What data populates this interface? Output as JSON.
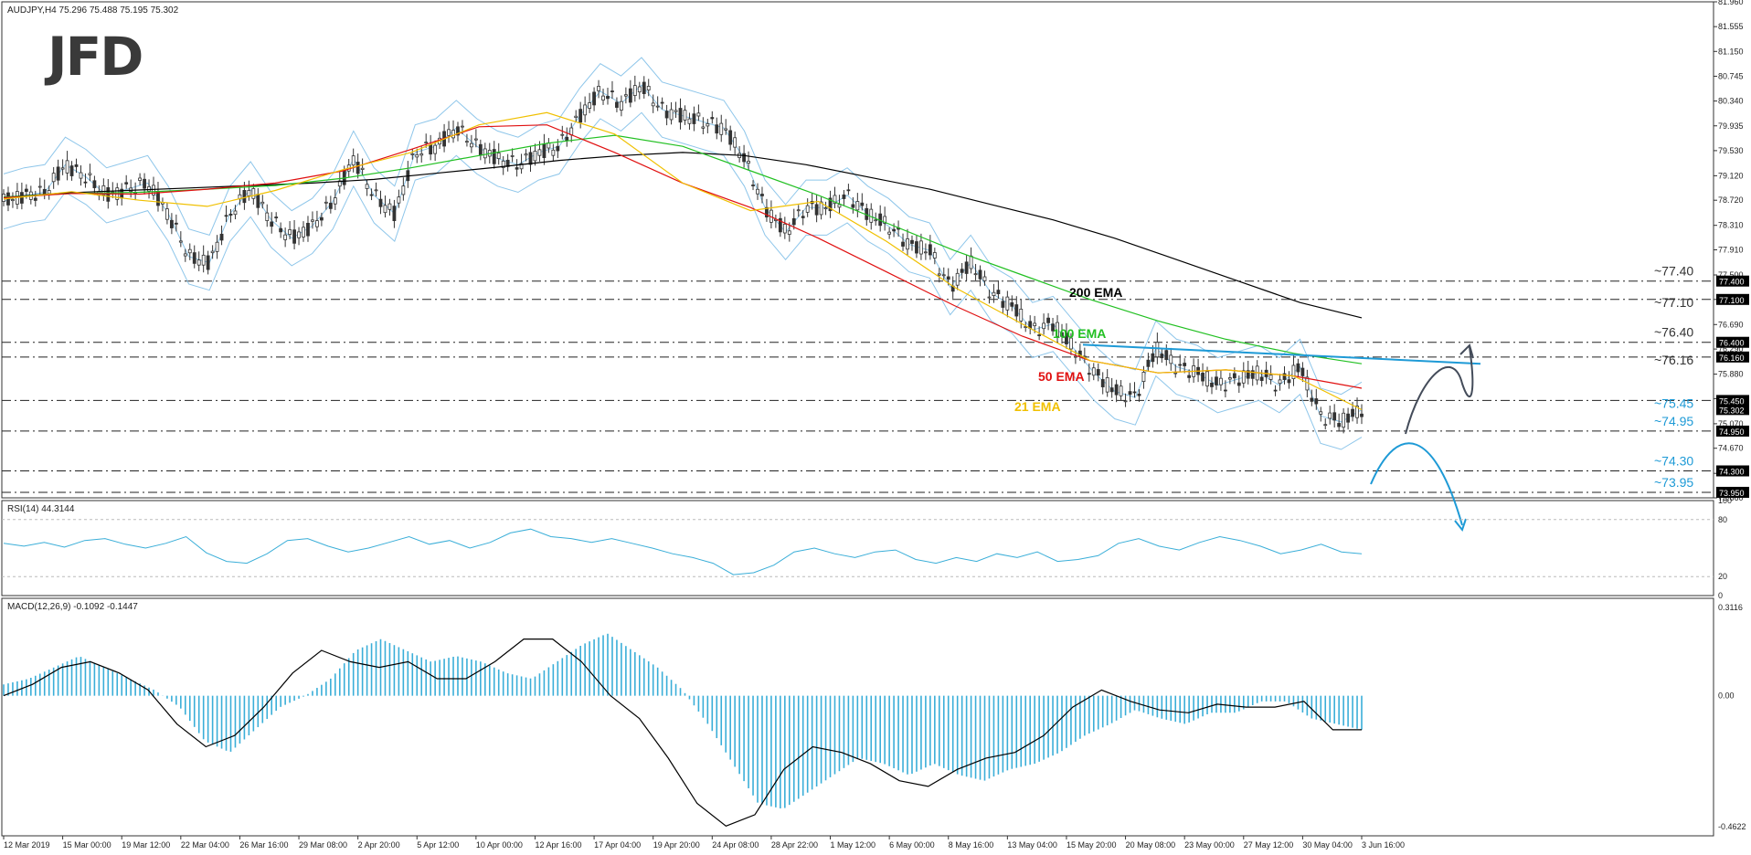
{
  "logo_text": "JFD",
  "header": {
    "symbol_info": "AUDJPY,H4  75.296 75.488 75.195 75.302",
    "rsi_label": "RSI(14) 44.3144",
    "macd_label": "MACD(12,26,9) -0.1092 -0.1447"
  },
  "colors": {
    "ema200": "#000000",
    "ema100": "#22c022",
    "ema50": "#e01010",
    "ema21": "#f0c000",
    "bollinger": "#8ec6ea",
    "trend": "#1e9ad6",
    "indicator": "#3aaed8",
    "level_line": "#222222",
    "up_arrow": "#444c5a",
    "down_arrow": "#1e9ad6"
  },
  "chart_data": [
    {
      "type": "line",
      "title": "AUDJPY,H4",
      "series_labels": [
        "200 EMA",
        "100 EMA",
        "50 EMA",
        "21 EMA"
      ],
      "price_axis_ticks": [
        "81.960",
        "81.555",
        "81.150",
        "80.745",
        "80.340",
        "79.935",
        "79.530",
        "79.120",
        "78.720",
        "78.310",
        "77.910",
        "77.500",
        "77.100",
        "76.690",
        "76.290",
        "75.880",
        "75.480",
        "75.070",
        "74.670",
        "74.260",
        "73.860"
      ],
      "level_badges": [
        "77.400",
        "77.100",
        "76.400",
        "76.160",
        "75.450",
        "75.302",
        "74.950",
        "74.300",
        "73.950"
      ],
      "level_annotations": [
        "~77.40",
        "~77.10",
        "~76.40",
        "~76.16",
        "~75.45",
        "~74.95",
        "~74.30",
        "~73.95"
      ],
      "levels": [
        77.4,
        77.1,
        76.4,
        76.16,
        75.45,
        74.95,
        74.3,
        73.95
      ],
      "current_price": 75.302,
      "ylim": [
        73.86,
        81.96
      ],
      "x_tick_labels": [
        "12 Mar 2019",
        "15 Mar 00:00",
        "19 Mar 12:00",
        "22 Mar 04:00",
        "26 Mar 16:00",
        "29 Mar 08:00",
        "2 Apr 20:00",
        "5 Apr 12:00",
        "10 Apr 00:00",
        "12 Apr 16:00",
        "17 Apr 04:00",
        "19 Apr 20:00",
        "24 Apr 08:00",
        "28 Apr 22:00",
        "1 May 12:00",
        "6 May 00:00",
        "8 May 16:00",
        "13 May 04:00",
        "15 May 20:00",
        "20 May 08:00",
        "23 May 00:00",
        "27 May 12:00",
        "30 May 04:00",
        "3 Jun 16:00"
      ],
      "close_path": [
        78.7,
        78.8,
        78.85,
        79.3,
        79.1,
        78.8,
        78.9,
        79.0,
        78.5,
        77.8,
        77.7,
        78.5,
        78.9,
        78.4,
        78.1,
        78.3,
        78.7,
        79.4,
        78.8,
        78.5,
        79.5,
        79.6,
        79.9,
        79.6,
        79.4,
        79.3,
        79.5,
        79.6,
        80.1,
        80.5,
        80.3,
        80.6,
        80.2,
        80.1,
        80.0,
        79.9,
        79.4,
        78.6,
        78.2,
        78.6,
        78.6,
        78.8,
        78.5,
        78.3,
        78.0,
        77.9,
        77.3,
        77.7,
        77.2,
        77.0,
        76.6,
        76.7,
        76.3,
        75.9,
        75.6,
        75.5,
        76.3,
        76.0,
        75.9,
        75.7,
        75.8,
        75.9,
        75.7,
        76.0,
        75.2,
        75.1,
        75.3
      ],
      "ema200": [
        78.77,
        78.84,
        78.88,
        78.92,
        78.96,
        79.0,
        79.06,
        79.16,
        79.26,
        79.37,
        79.45,
        79.5,
        79.45,
        79.3,
        79.1,
        78.9,
        78.65,
        78.4,
        78.1,
        77.75,
        77.4,
        77.05,
        76.8
      ],
      "ema100": [
        78.77,
        78.83,
        78.85,
        78.9,
        78.96,
        79.08,
        79.25,
        79.45,
        79.65,
        79.78,
        79.6,
        79.2,
        78.8,
        78.35,
        77.9,
        77.5,
        77.1,
        76.75,
        76.45,
        76.22,
        76.05
      ],
      "ema50": [
        78.76,
        78.83,
        78.82,
        78.9,
        79.0,
        79.2,
        79.55,
        79.92,
        79.95,
        79.5,
        79.0,
        78.6,
        78.1,
        77.55,
        77.0,
        76.5,
        76.1,
        75.9,
        75.95,
        75.85,
        75.65
      ],
      "ema21": [
        78.74,
        78.86,
        78.72,
        78.62,
        78.88,
        79.22,
        79.5,
        79.95,
        80.15,
        79.8,
        79.0,
        78.55,
        78.7,
        78.05,
        77.3,
        76.7,
        76.1,
        75.9,
        75.95,
        75.85,
        75.3
      ],
      "trendline": {
        "from": 76.36,
        "to": 76.05
      },
      "scenario_up_targets": [
        76.16,
        77.4
      ],
      "scenario_down_target": 74.95
    },
    {
      "type": "line",
      "title": "RSI(14) 44.3144",
      "ylim": [
        0,
        100
      ],
      "axis_ticks": [
        "100",
        "80",
        "20",
        "0"
      ],
      "reference_lines": [
        80,
        20
      ],
      "values": [
        55,
        52,
        56,
        51,
        58,
        60,
        54,
        50,
        55,
        62,
        45,
        36,
        34,
        44,
        58,
        60,
        52,
        46,
        50,
        56,
        62,
        54,
        58,
        50,
        56,
        66,
        70,
        62,
        60,
        56,
        60,
        55,
        50,
        44,
        40,
        34,
        22,
        24,
        32,
        46,
        50,
        44,
        40,
        46,
        48,
        38,
        34,
        40,
        36,
        44,
        40,
        46,
        36,
        38,
        42,
        55,
        60,
        52,
        48,
        56,
        62,
        58,
        52,
        44,
        48,
        54,
        46,
        44
      ]
    },
    {
      "type": "bar",
      "title": "MACD(12,26,9) -0.1092 -0.1447",
      "ylim": [
        -0.4622,
        0.3116
      ],
      "axis_ticks": [
        "0.3116",
        "0.00",
        "-0.4622"
      ],
      "histogram": [
        0.04,
        0.06,
        0.1,
        0.14,
        0.1,
        0.06,
        0.02,
        -0.04,
        -0.16,
        -0.2,
        -0.12,
        -0.04,
        0.0,
        0.06,
        0.16,
        0.2,
        0.16,
        0.12,
        0.14,
        0.12,
        0.08,
        0.06,
        0.12,
        0.18,
        0.22,
        0.16,
        0.1,
        0.02,
        -0.1,
        -0.24,
        -0.38,
        -0.4,
        -0.34,
        -0.28,
        -0.22,
        -0.24,
        -0.28,
        -0.24,
        -0.28,
        -0.3,
        -0.26,
        -0.24,
        -0.2,
        -0.14,
        -0.1,
        -0.05,
        -0.08,
        -0.1,
        -0.06,
        -0.06,
        -0.02,
        -0.02,
        -0.08,
        -0.1,
        -0.12
      ],
      "signal": [
        0.0,
        0.04,
        0.1,
        0.12,
        0.08,
        0.02,
        -0.1,
        -0.18,
        -0.14,
        -0.04,
        0.08,
        0.16,
        0.12,
        0.1,
        0.12,
        0.06,
        0.06,
        0.12,
        0.2,
        0.2,
        0.12,
        0.0,
        -0.08,
        -0.22,
        -0.38,
        -0.46,
        -0.42,
        -0.26,
        -0.18,
        -0.2,
        -0.24,
        -0.3,
        -0.32,
        -0.26,
        -0.22,
        -0.2,
        -0.14,
        -0.04,
        0.02,
        -0.02,
        -0.05,
        -0.06,
        -0.03,
        -0.04,
        -0.04,
        -0.02,
        -0.12,
        -0.12
      ]
    }
  ]
}
